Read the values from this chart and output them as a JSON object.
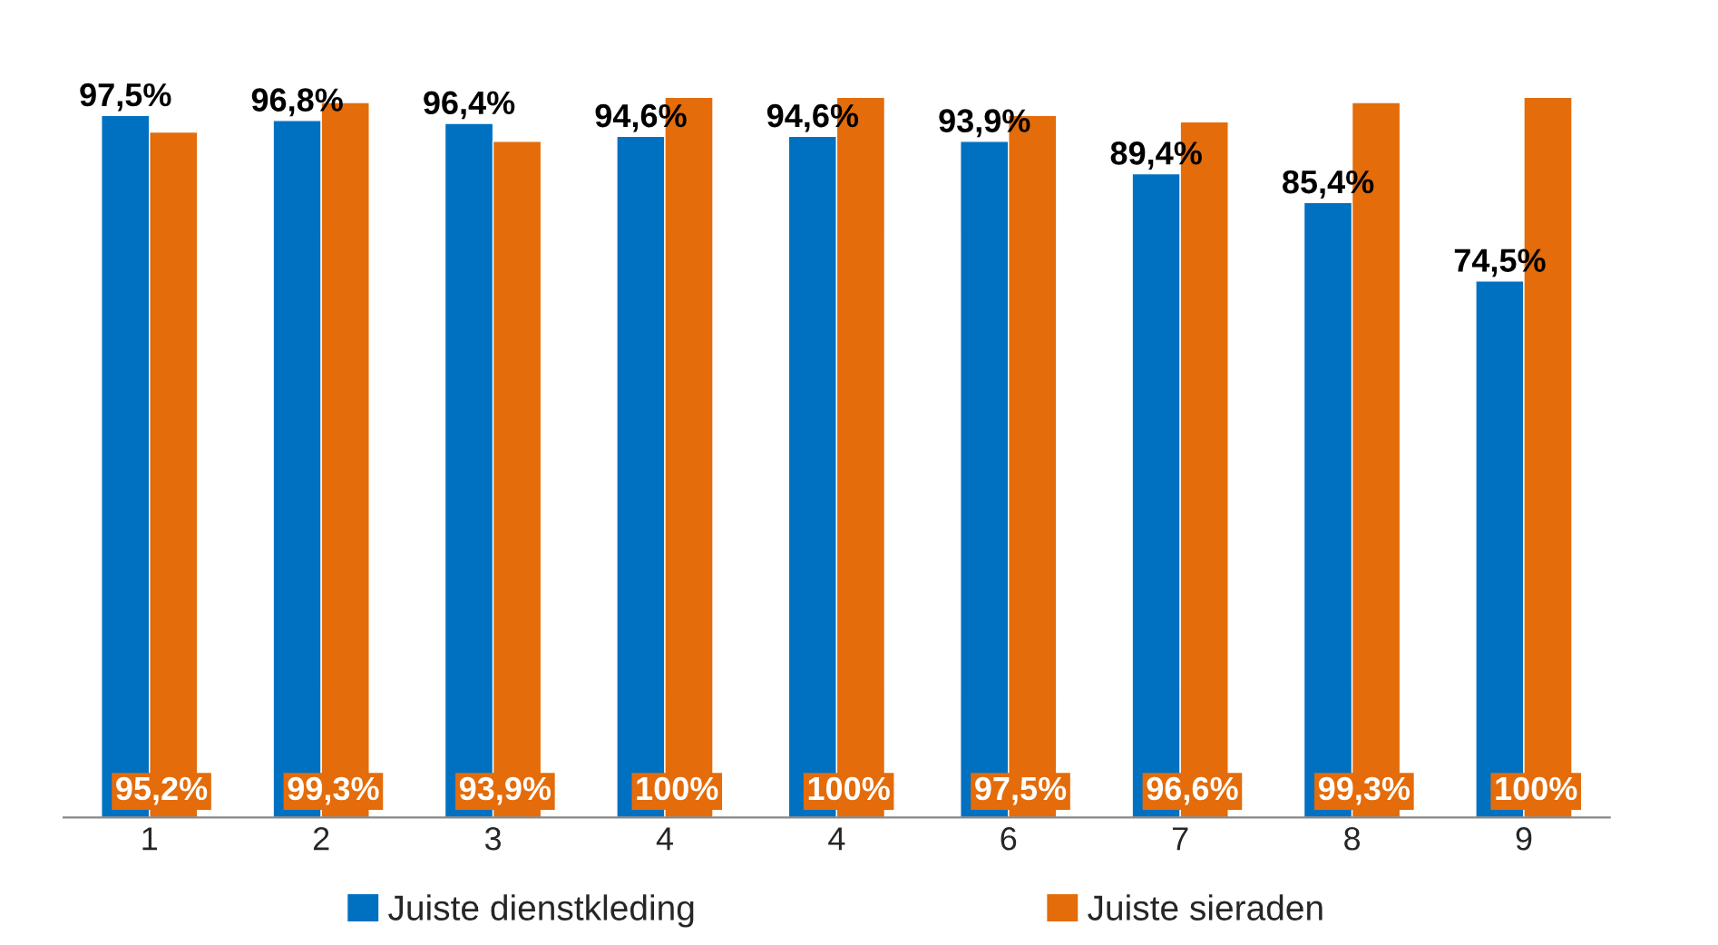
{
  "chart_data": {
    "type": "bar",
    "categories": [
      "1",
      "2",
      "3",
      "4",
      "4",
      "6",
      "7",
      "8",
      "9"
    ],
    "series": [
      {
        "name": "Juiste dienstkleding",
        "color": "#0070c0",
        "values": [
          97.5,
          96.8,
          96.4,
          94.6,
          94.6,
          93.9,
          89.4,
          85.4,
          74.5
        ],
        "value_labels": [
          "97,5%",
          "96,8%",
          "96,4%",
          "94,6%",
          "94,6%",
          "93,9%",
          "89,4%",
          "85,4%",
          "74,5%"
        ]
      },
      {
        "name": "Juiste sieraden",
        "color": "#e46c0a",
        "values": [
          95.2,
          99.3,
          93.9,
          100,
          100,
          97.5,
          96.6,
          99.3,
          100
        ],
        "value_labels": [
          "95,2%",
          "99,3%",
          "93,9%",
          "100%",
          "100%",
          "97,5%",
          "96,6%",
          "99,3%",
          "100%"
        ]
      }
    ],
    "legend": "bottom",
    "grid": false,
    "tick_labels": "x"
  }
}
